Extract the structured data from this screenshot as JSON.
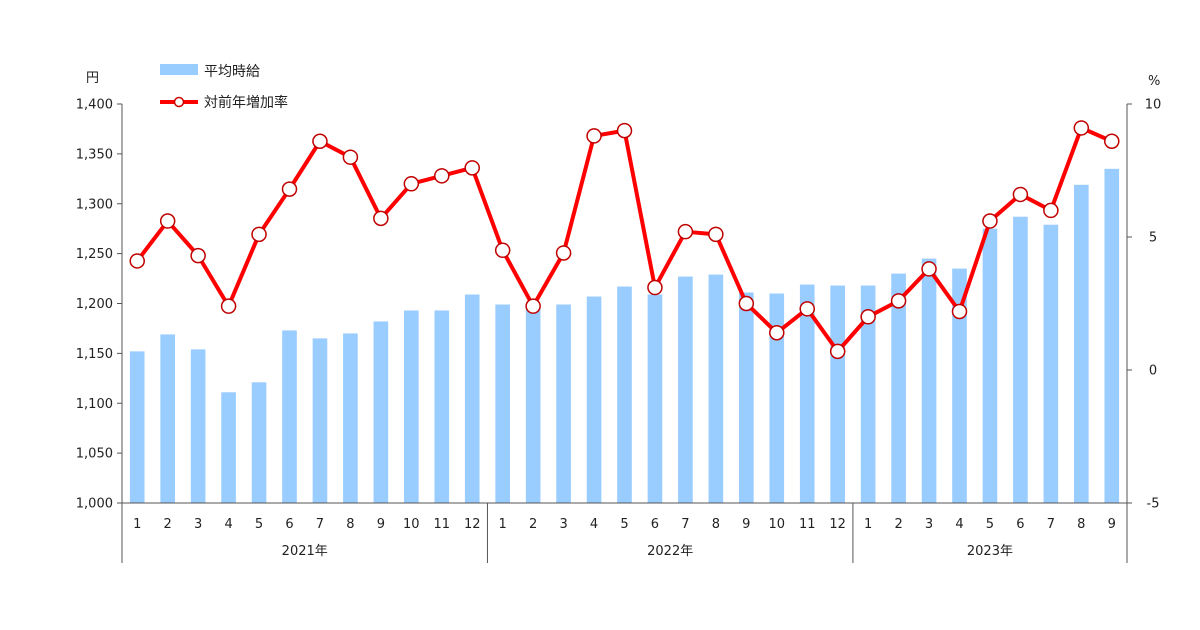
{
  "chart_data": {
    "type": "bar+line",
    "title": "",
    "left_axis": {
      "unit": "円",
      "ylim": [
        1000,
        1400
      ],
      "ticks": [
        1000,
        1050,
        1100,
        1150,
        1200,
        1250,
        1300,
        1350,
        1400
      ]
    },
    "right_axis": {
      "unit": "%",
      "ylim": [
        -5,
        10
      ],
      "ticks": [
        -5,
        0,
        5,
        10
      ]
    },
    "categories": [
      "1",
      "2",
      "3",
      "4",
      "5",
      "6",
      "7",
      "8",
      "9",
      "10",
      "11",
      "12",
      "1",
      "2",
      "3",
      "4",
      "5",
      "6",
      "7",
      "8",
      "9",
      "10",
      "11",
      "12",
      "1",
      "2",
      "3",
      "4",
      "5",
      "6",
      "7",
      "8",
      "9"
    ],
    "year_groups": [
      {
        "label": "2021年",
        "count": 12
      },
      {
        "label": "2022年",
        "count": 12
      },
      {
        "label": "2023年",
        "count": 9
      }
    ],
    "series": [
      {
        "name": "平均時給",
        "type": "bar",
        "axis": "left",
        "color": "#99ccff",
        "values": [
          1152,
          1169,
          1154,
          1111,
          1121,
          1173,
          1165,
          1170,
          1182,
          1193,
          1193,
          1209,
          1199,
          1198,
          1199,
          1207,
          1217,
          1209,
          1227,
          1229,
          1211,
          1210,
          1219,
          1218,
          1218,
          1230,
          1245,
          1235,
          1275,
          1287,
          1279,
          1319,
          1335
        ]
      },
      {
        "name": "対前年増加率",
        "type": "line",
        "axis": "right",
        "color": "#ff0000",
        "values": [
          4.1,
          5.6,
          4.3,
          2.4,
          5.1,
          6.8,
          8.6,
          8.0,
          5.7,
          7.0,
          7.3,
          7.6,
          4.5,
          2.4,
          4.4,
          8.8,
          9.0,
          3.1,
          5.2,
          5.1,
          2.5,
          1.4,
          2.3,
          0.7,
          2.0,
          2.6,
          3.8,
          2.2,
          5.6,
          6.6,
          6.0,
          9.1,
          8.6
        ]
      }
    ],
    "legend": "top-left",
    "grid": false
  }
}
